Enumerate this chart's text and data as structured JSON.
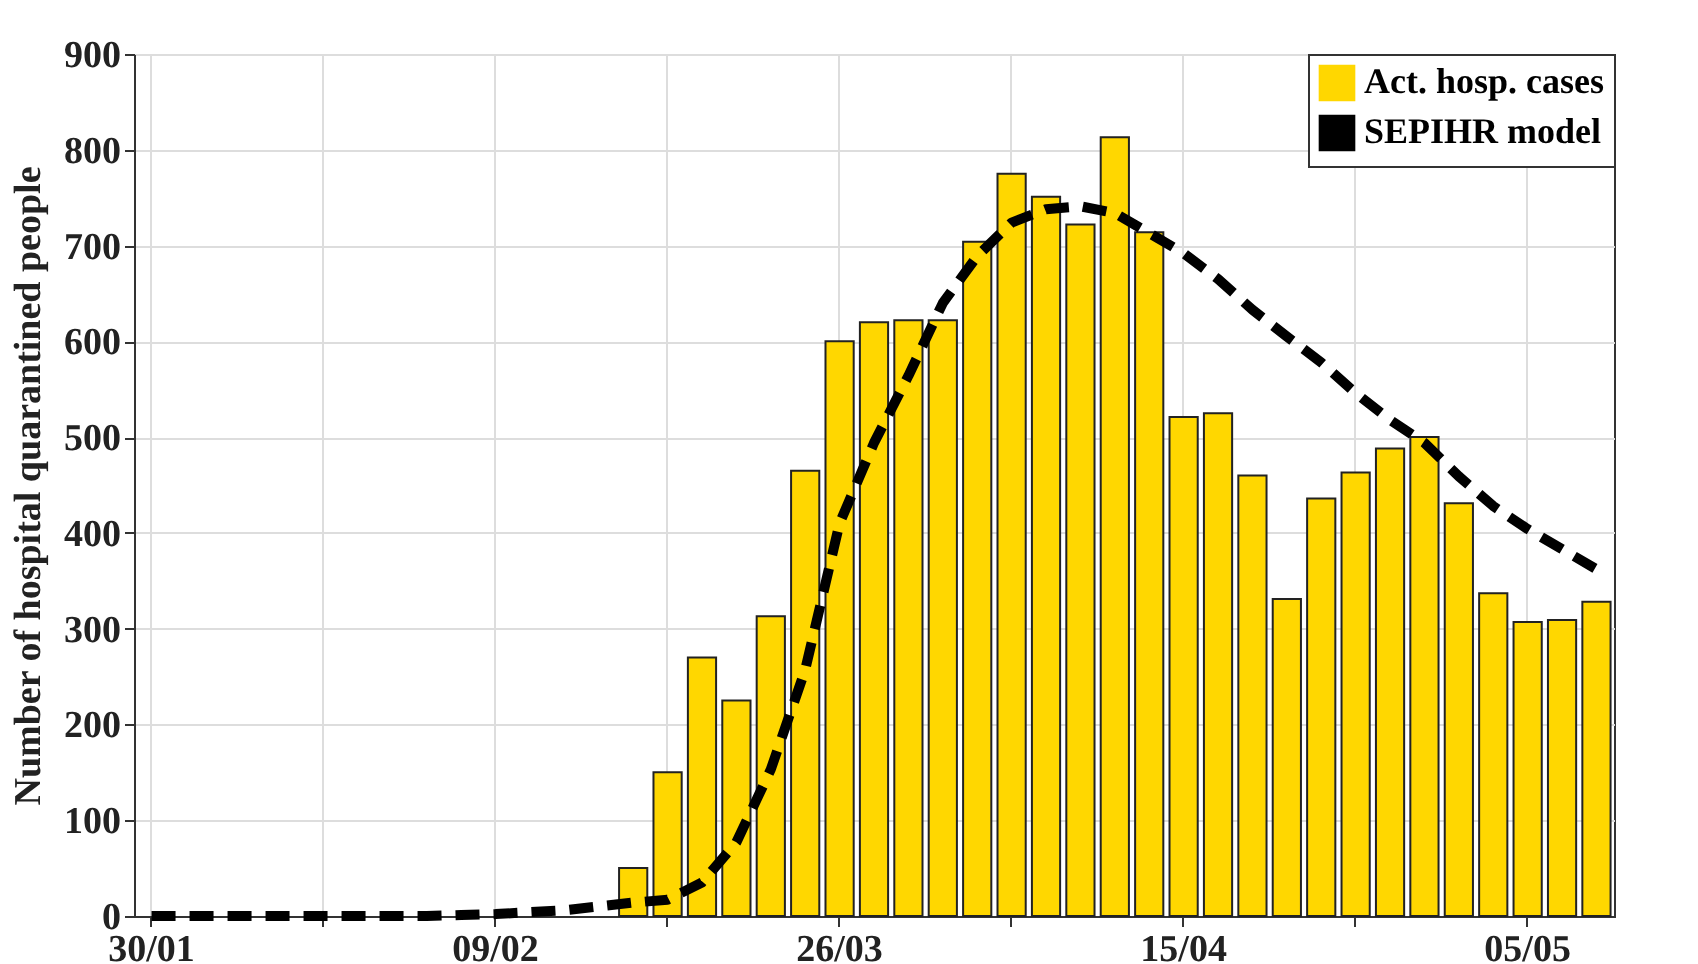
{
  "chart_data": {
    "type": "bar",
    "ylabel": "Number of hospital quarantined people",
    "categories": [
      "30/01",
      null,
      null,
      null,
      null,
      null,
      null,
      null,
      null,
      null,
      "09/02",
      null,
      null,
      null,
      null,
      null,
      null,
      null,
      null,
      null,
      "26/03",
      null,
      null,
      null,
      null,
      null,
      null,
      null,
      null,
      null,
      "15/04",
      null,
      null,
      null,
      null,
      null,
      null,
      null,
      null,
      null,
      "05/05",
      null,
      null
    ],
    "ylim": [
      0,
      900
    ],
    "yticks": [
      0,
      100,
      200,
      300,
      400,
      500,
      600,
      700,
      800,
      900
    ],
    "grid": true,
    "legend": "top right",
    "series": [
      {
        "name": "Act. hosp. cases",
        "color": "#ffd700",
        "values": [
          null,
          null,
          null,
          null,
          null,
          null,
          null,
          null,
          null,
          null,
          null,
          null,
          null,
          null,
          50,
          150,
          270,
          225,
          313,
          465,
          600,
          620,
          622,
          622,
          704,
          775,
          751,
          722,
          813,
          714,
          521,
          525,
          460,
          331,
          436,
          463,
          488,
          500,
          431,
          337,
          307,
          309,
          328
        ]
      },
      {
        "name": "SEPIHR model",
        "type": "line",
        "line_style": "dashed",
        "color": "#000000",
        "values": [
          0,
          0,
          0,
          0,
          0,
          0,
          0,
          0,
          0,
          1,
          2,
          4,
          6,
          10,
          14,
          17,
          35,
          77,
          153,
          257,
          410,
          494,
          564,
          640,
          689,
          724,
          738,
          741,
          734,
          713,
          692,
          665,
          633,
          605,
          578,
          546,
          518,
          494,
          459,
          428,
          404,
          383,
          362
        ]
      }
    ]
  }
}
